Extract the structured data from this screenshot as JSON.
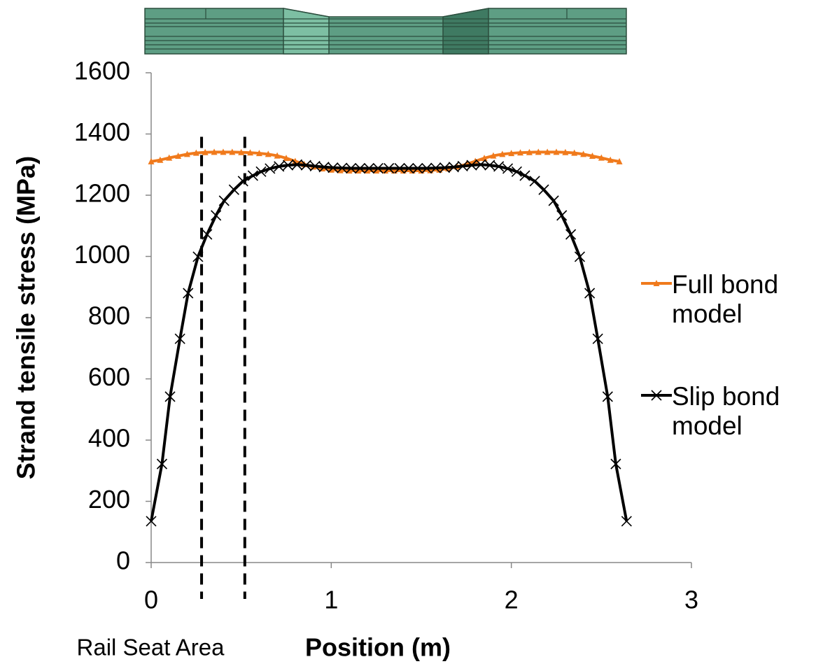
{
  "chart_data": {
    "type": "line",
    "y_label": "Strand tensile stress (MPa)",
    "x_label": "Position (m)",
    "annotation": "Rail Seat Area",
    "vlines": [
      0.28,
      0.52
    ],
    "xlim": [
      0,
      3
    ],
    "xticks": [
      0,
      1,
      2,
      3
    ],
    "ylim": [
      0,
      1600
    ],
    "yticks": [
      0,
      200,
      400,
      600,
      800,
      1000,
      1200,
      1400,
      1600
    ],
    "grid": false,
    "legend": "right",
    "series": [
      {
        "name": "Full bond model",
        "color": "#f07a1c",
        "marker": "triangle",
        "x": [
          0,
          0.05,
          0.1,
          0.15,
          0.2,
          0.25,
          0.3,
          0.35,
          0.4,
          0.45,
          0.5,
          0.55,
          0.6,
          0.65,
          0.7,
          0.75,
          0.8,
          0.85,
          0.9,
          0.95,
          1.0,
          1.05,
          1.1,
          1.15,
          1.2,
          1.25,
          1.3,
          1.35,
          1.4,
          1.45,
          1.5,
          1.55,
          1.6,
          1.65,
          1.7,
          1.75,
          1.8,
          1.85,
          1.9,
          1.95,
          2.0,
          2.05,
          2.1,
          2.15,
          2.2,
          2.25,
          2.3,
          2.35,
          2.4,
          2.45,
          2.5,
          2.55,
          2.6
        ],
        "values": [
          1310,
          1315,
          1322,
          1328,
          1334,
          1338,
          1340,
          1341,
          1341,
          1341,
          1340,
          1339,
          1337,
          1334,
          1329,
          1321,
          1311,
          1301,
          1293,
          1287,
          1283,
          1281,
          1280,
          1280,
          1280,
          1280,
          1280,
          1280,
          1280,
          1280,
          1280,
          1281,
          1283,
          1287,
          1293,
          1301,
          1311,
          1321,
          1329,
          1334,
          1337,
          1339,
          1340,
          1341,
          1341,
          1341,
          1340,
          1338,
          1334,
          1328,
          1322,
          1315,
          1310
        ]
      },
      {
        "name": "Slip bond model",
        "color": "#000000",
        "marker": "x",
        "x": [
          0,
          0.06,
          0.105,
          0.16,
          0.205,
          0.26,
          0.31,
          0.36,
          0.405,
          0.46,
          0.51,
          0.565,
          0.61,
          0.66,
          0.71,
          0.76,
          0.81,
          0.86,
          0.91,
          0.96,
          1.01,
          1.06,
          1.11,
          1.16,
          1.21,
          1.26,
          1.32,
          1.38,
          1.43,
          1.48,
          1.53,
          1.58,
          1.63,
          1.68,
          1.73,
          1.78,
          1.83,
          1.88,
          1.93,
          1.98,
          2.03,
          2.075,
          2.13,
          2.18,
          2.235,
          2.28,
          2.33,
          2.38,
          2.435,
          2.48,
          2.535,
          2.58,
          2.64
        ],
        "values": [
          135,
          322,
          542,
          731,
          880,
          999,
          1072,
          1134,
          1182,
          1218,
          1246,
          1264,
          1277,
          1287,
          1294,
          1298,
          1300,
          1298,
          1295,
          1292,
          1290,
          1289,
          1288,
          1288,
          1288,
          1288,
          1288,
          1288,
          1288,
          1288,
          1288,
          1289,
          1290,
          1292,
          1295,
          1298,
          1300,
          1298,
          1294,
          1287,
          1277,
          1264,
          1246,
          1218,
          1182,
          1134,
          1072,
          999,
          880,
          731,
          542,
          322,
          135
        ]
      }
    ]
  }
}
